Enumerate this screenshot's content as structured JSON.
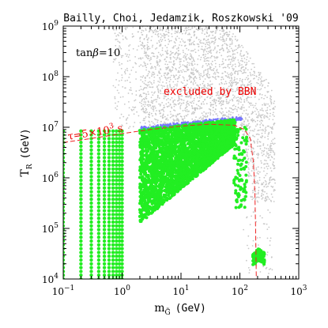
{
  "chart_data": {
    "type": "scatter",
    "title": "Bailly, Choi, Jedamzik, Roszkowski '09",
    "xlabel": {
      "main": "m",
      "sub": "G̃",
      "unit": "(GeV)"
    },
    "ylabel": {
      "main": "T",
      "sub": "R",
      "unit": "(GeV)"
    },
    "x_scale": "log",
    "y_scale": "log",
    "xlim": [
      0.1,
      1000
    ],
    "ylim": [
      10000,
      1000000000
    ],
    "x_ticks": [
      0.1,
      1,
      10,
      100,
      1000
    ],
    "y_ticks": [
      10000,
      100000,
      1000000,
      10000000,
      100000000,
      1000000000
    ],
    "x_tick_labels": [
      {
        "base": "10",
        "exp": "−1"
      },
      {
        "base": "10",
        "exp": "0"
      },
      {
        "base": "10",
        "exp": "1"
      },
      {
        "base": "10",
        "exp": "2"
      },
      {
        "base": "10",
        "exp": "3"
      }
    ],
    "y_tick_labels": [
      {
        "base": "10",
        "exp": "4"
      },
      {
        "base": "10",
        "exp": "5"
      },
      {
        "base": "10",
        "exp": "6"
      },
      {
        "base": "10",
        "exp": "7"
      },
      {
        "base": "10",
        "exp": "8"
      },
      {
        "base": "10",
        "exp": "9"
      }
    ],
    "annotations": {
      "tanbeta": {
        "prefix": "tan",
        "symbol": "β",
        "suffix": "=10"
      },
      "excluded": "excluded by BBN",
      "tau": {
        "prefix": "τ=5×10",
        "exp": "3",
        "suffix": " s"
      }
    },
    "colors": {
      "allowed": "#22ee22",
      "bbn_edge": "#7777ff",
      "excluded": "#c8c8c8",
      "curve": "#ee2222",
      "text_red": "#ee0000"
    },
    "regions": [
      {
        "name": "excluded",
        "description": "excluded by BBN"
      },
      {
        "name": "allowed"
      },
      {
        "name": "bbn_edge"
      }
    ],
    "tau_curve": [
      [
        0.1,
        5000000
      ],
      [
        0.3,
        6000000
      ],
      [
        1,
        7500000
      ],
      [
        3,
        9000000
      ],
      [
        10,
        10500000
      ],
      [
        30,
        11500000
      ],
      [
        80,
        11000000
      ],
      [
        120,
        9000000
      ],
      [
        150,
        6000000
      ],
      [
        170,
        2000000
      ],
      [
        180,
        500000
      ],
      [
        185,
        100000
      ],
      [
        188,
        30000
      ],
      [
        190,
        10000
      ]
    ]
  }
}
